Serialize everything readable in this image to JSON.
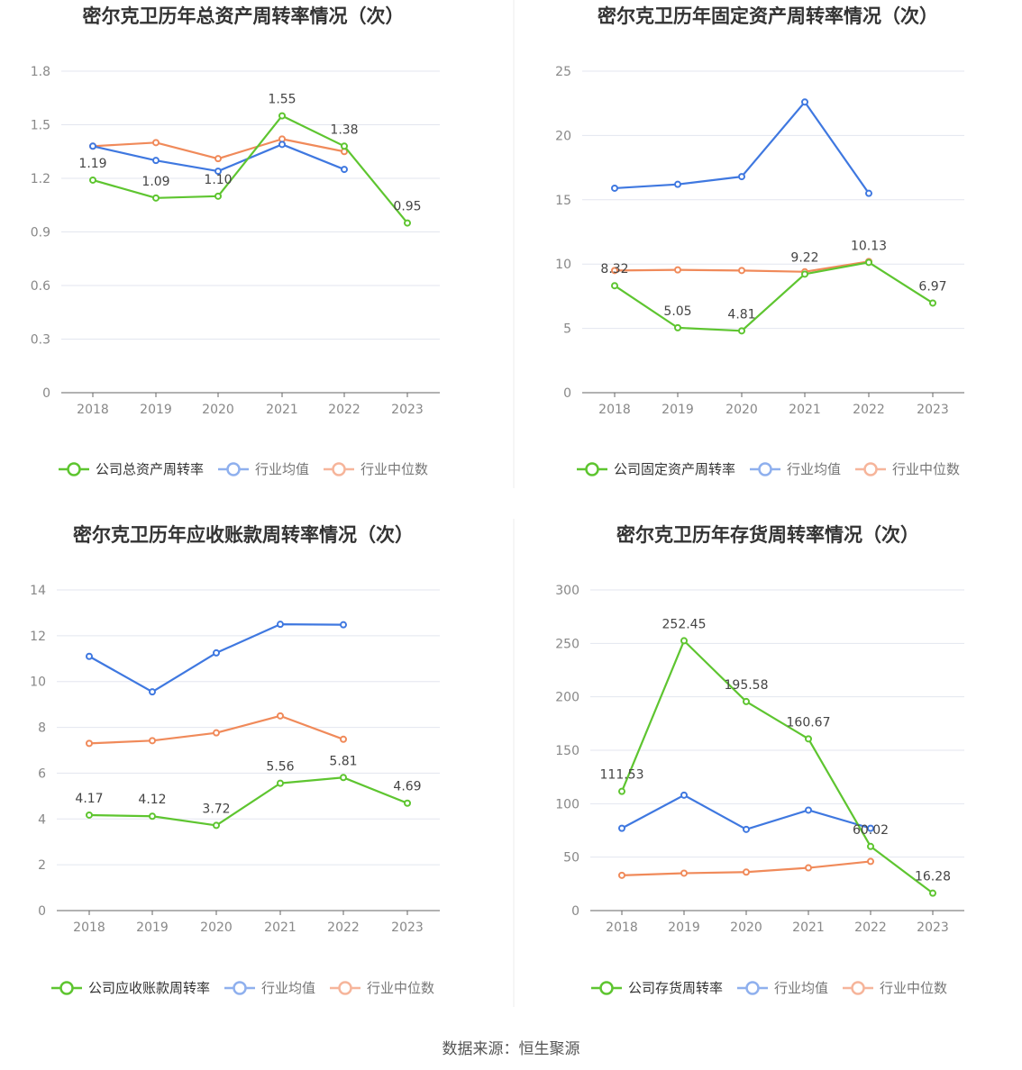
{
  "colors": {
    "company": "#5ec530",
    "average": "#3f78e0",
    "median": "#f08a5a",
    "legend_average": "#8fb0ee",
    "legend_median": "#f6b59b",
    "grid": "#e3e6ef",
    "axis": "#666666"
  },
  "chart_data": [
    {
      "type": "line",
      "title": "密尔克卫历年总资产周转率情况（次）",
      "categories": [
        "2018",
        "2019",
        "2020",
        "2021",
        "2022",
        "2023"
      ],
      "ylim": [
        0,
        1.8
      ],
      "yticks": [
        "0",
        "0.3",
        "0.6",
        "0.9",
        "1.2",
        "1.5",
        "1.8"
      ],
      "series": [
        {
          "name": "公司总资产周转率",
          "role": "company",
          "values": [
            1.19,
            1.09,
            1.1,
            1.55,
            1.38,
            0.95
          ],
          "labels": [
            "1.19",
            "1.09",
            "1.10",
            "1.55",
            "1.38",
            "0.95"
          ]
        },
        {
          "name": "行业均值",
          "role": "average",
          "values": [
            1.38,
            1.3,
            1.24,
            1.39,
            1.25,
            null
          ]
        },
        {
          "name": "行业中位数",
          "role": "median",
          "values": [
            1.38,
            1.4,
            1.31,
            1.42,
            1.35,
            null
          ]
        }
      ]
    },
    {
      "type": "line",
      "title": "密尔克卫历年固定资产周转率情况（次）",
      "categories": [
        "2018",
        "2019",
        "2020",
        "2021",
        "2022",
        "2023"
      ],
      "ylim": [
        0,
        25
      ],
      "yticks": [
        "0",
        "5",
        "10",
        "15",
        "20",
        "25"
      ],
      "series": [
        {
          "name": "公司固定资产周转率",
          "role": "company",
          "values": [
            8.32,
            5.05,
            4.81,
            9.22,
            10.13,
            6.97
          ],
          "labels": [
            "8.32",
            "5.05",
            "4.81",
            "9.22",
            "10.13",
            "6.97"
          ]
        },
        {
          "name": "行业均值",
          "role": "average",
          "values": [
            15.9,
            16.2,
            16.8,
            22.6,
            15.5,
            null
          ]
        },
        {
          "name": "行业中位数",
          "role": "median",
          "values": [
            9.5,
            9.55,
            9.5,
            9.4,
            10.2,
            null
          ]
        }
      ]
    },
    {
      "type": "line",
      "title": "密尔克卫历年应收账款周转率情况（次）",
      "categories": [
        "2018",
        "2019",
        "2020",
        "2021",
        "2022",
        "2023"
      ],
      "ylim": [
        0,
        14
      ],
      "yticks": [
        "0",
        "2",
        "4",
        "6",
        "8",
        "10",
        "12",
        "14"
      ],
      "series": [
        {
          "name": "公司应收账款周转率",
          "role": "company",
          "values": [
            4.17,
            4.12,
            3.72,
            5.56,
            5.81,
            4.69
          ],
          "labels": [
            "4.17",
            "4.12",
            "3.72",
            "5.56",
            "5.81",
            "4.69"
          ]
        },
        {
          "name": "行业均值",
          "role": "average",
          "values": [
            11.1,
            9.55,
            11.25,
            12.5,
            12.48,
            null
          ]
        },
        {
          "name": "行业中位数",
          "role": "median",
          "values": [
            7.3,
            7.42,
            7.76,
            8.5,
            7.48,
            null
          ]
        }
      ]
    },
    {
      "type": "line",
      "title": "密尔克卫历年存货周转率情况（次）",
      "categories": [
        "2018",
        "2019",
        "2020",
        "2021",
        "2022",
        "2023"
      ],
      "ylim": [
        0,
        300
      ],
      "yticks": [
        "0",
        "50",
        "100",
        "150",
        "200",
        "250",
        "300"
      ],
      "series": [
        {
          "name": "公司存货周转率",
          "role": "company",
          "values": [
            111.53,
            252.45,
            195.58,
            160.67,
            60.02,
            16.28
          ],
          "labels": [
            "111.53",
            "252.45",
            "195.58",
            "160.67",
            "60.02",
            "16.28"
          ]
        },
        {
          "name": "行业均值",
          "role": "average",
          "values": [
            77,
            108,
            76,
            94,
            77,
            null
          ]
        },
        {
          "name": "行业中位数",
          "role": "median",
          "values": [
            33,
            35,
            36,
            40,
            46,
            null
          ]
        }
      ]
    }
  ],
  "footer": {
    "source": "数据来源：恒生聚源"
  }
}
